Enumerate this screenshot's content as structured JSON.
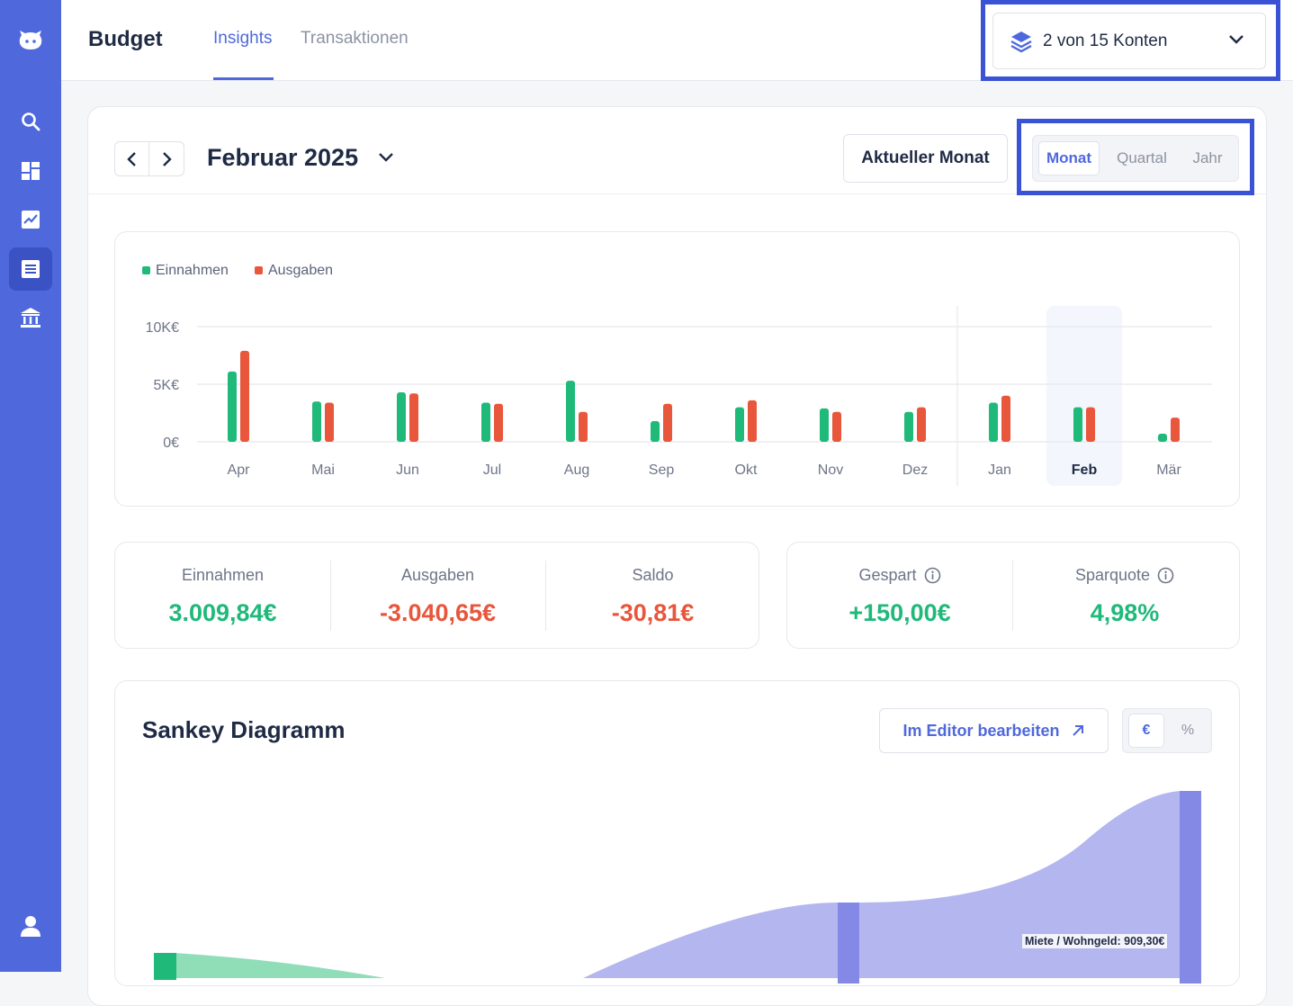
{
  "app": {
    "title": "Budget",
    "tabs": [
      {
        "label": "Insights",
        "active": true
      },
      {
        "label": "Transaktionen",
        "active": false
      }
    ],
    "accounts_selector": "2 von 15 Konten"
  },
  "sidebar": {
    "items": [
      {
        "icon": "logo-icon"
      },
      {
        "icon": "search-icon"
      },
      {
        "icon": "dashboard-icon"
      },
      {
        "icon": "chart-icon"
      },
      {
        "icon": "budget-icon",
        "active": true
      },
      {
        "icon": "bank-icon"
      },
      {
        "icon": "user-icon"
      }
    ]
  },
  "period": {
    "title": "Februar 2025",
    "current_button": "Aktueller Monat",
    "granularity": [
      "Monat",
      "Quartal",
      "Jahr"
    ],
    "granularity_selected": "Monat"
  },
  "chart_data": {
    "type": "bar",
    "categories": [
      "Apr",
      "Mai",
      "Jun",
      "Jul",
      "Aug",
      "Sep",
      "Okt",
      "Nov",
      "Dez",
      "Jan",
      "Feb",
      "Mär"
    ],
    "series": [
      {
        "name": "Einnahmen",
        "color": "#1fb97a",
        "values": [
          6.1,
          3.5,
          4.3,
          3.4,
          5.3,
          1.8,
          3.0,
          2.9,
          2.6,
          3.4,
          3.0,
          0.7
        ]
      },
      {
        "name": "Ausgaben",
        "color": "#e8563b",
        "values": [
          7.9,
          3.4,
          4.2,
          3.3,
          2.6,
          3.3,
          3.6,
          2.6,
          3.0,
          4.0,
          3.0,
          2.1
        ]
      }
    ],
    "y_ticks": [
      "10K€",
      "5K€",
      "0€"
    ],
    "ylim": [
      0,
      10
    ],
    "selected_category": "Feb",
    "legend_position": "top-left"
  },
  "stats": {
    "einnahmen": {
      "label": "Einnahmen",
      "value": "3.009,84€"
    },
    "ausgaben": {
      "label": "Ausgaben",
      "value": "-3.040,65€"
    },
    "saldo": {
      "label": "Saldo",
      "value": "-30,81€"
    },
    "gespart": {
      "label": "Gespart",
      "value": "+150,00€"
    },
    "sparquote": {
      "label": "Sparquote",
      "value": "4,98%"
    }
  },
  "sankey": {
    "title": "Sankey Diagramm",
    "editor_button": "Im Editor bearbeiten",
    "units": [
      "€",
      "%"
    ],
    "unit_selected": "€",
    "flow_label": "Miete / Wohngeld: 909,30€"
  },
  "colors": {
    "accent": "#4f69dc",
    "income": "#1fb97a",
    "expense": "#e8563b",
    "sankey_flow": "#b4b6f0",
    "sankey_node": "#8489e6"
  }
}
